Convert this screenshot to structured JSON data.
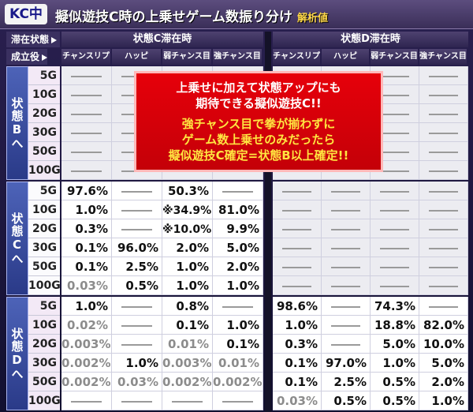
{
  "title": {
    "badge": "KC中",
    "text": "擬似遊技C時の上乗せゲーム数振り分け",
    "sub": "解析値"
  },
  "header": {
    "state_label": "滞在状態",
    "role_label": "成立役",
    "groups": [
      "状態C滞在時",
      "状態D滞在時"
    ],
    "columns": [
      "チャンスリプ",
      "ハッピ",
      "弱チャンス目",
      "強チャンス目"
    ]
  },
  "row_labels": [
    "5G",
    "10G",
    "20G",
    "30G",
    "50G",
    "100G"
  ],
  "groups": [
    {
      "label": "状態Bへ",
      "rows": [
        [
          "",
          "",
          "",
          "",
          "",
          "",
          "",
          ""
        ],
        [
          "",
          "",
          "",
          "",
          "",
          "",
          "",
          ""
        ],
        [
          "",
          "",
          "",
          "",
          "",
          "",
          "",
          ""
        ],
        [
          "",
          "",
          "",
          "",
          "",
          "",
          "",
          ""
        ],
        [
          "",
          "",
          "",
          "",
          "",
          "",
          "",
          ""
        ],
        [
          "",
          "",
          "",
          "",
          "",
          "",
          "",
          ""
        ]
      ]
    },
    {
      "label": "状態Cへ",
      "rows": [
        [
          "97.6%",
          "",
          "50.3%",
          "",
          "",
          "",
          "",
          ""
        ],
        [
          "1.0%",
          "",
          "※34.9%",
          "81.0%",
          "",
          "",
          "",
          ""
        ],
        [
          "0.3%",
          "",
          "※10.0%",
          "9.9%",
          "",
          "",
          "",
          ""
        ],
        [
          "0.1%",
          "96.0%",
          "2.0%",
          "5.0%",
          "",
          "",
          "",
          ""
        ],
        [
          "0.1%",
          "2.5%",
          "1.0%",
          "2.0%",
          "",
          "",
          "",
          ""
        ],
        [
          "0.03%",
          "0.5%",
          "1.0%",
          "1.0%",
          "",
          "",
          "",
          ""
        ]
      ]
    },
    {
      "label": "状態Dへ",
      "rows": [
        [
          "1.0%",
          "",
          "0.8%",
          "",
          "98.6%",
          "",
          "74.3%",
          ""
        ],
        [
          "0.02%",
          "",
          "0.1%",
          "1.0%",
          "1.0%",
          "",
          "18.8%",
          "82.0%"
        ],
        [
          "0.003%",
          "",
          "0.01%",
          "0.1%",
          "0.3%",
          "",
          "5.0%",
          "10.0%"
        ],
        [
          "0.002%",
          "1.0%",
          "0.003%",
          "0.01%",
          "0.1%",
          "97.0%",
          "1.0%",
          "5.0%"
        ],
        [
          "0.002%",
          "0.03%",
          "0.002%",
          "0.002%",
          "0.1%",
          "2.5%",
          "0.5%",
          "2.0%"
        ],
        [
          "",
          "",
          "",
          "",
          "0.03%",
          "0.5%",
          "0.5%",
          "1.0%"
        ]
      ]
    }
  ],
  "overlay": {
    "lines_white": [
      "上乗せに加えて状態アップにも",
      "期待できる擬似遊技C!!"
    ],
    "lines_yellow": [
      "強チャンス目で拳が揃わずに",
      "ゲーム数上乗せのみだったら",
      "擬似遊技C確定=状態B以上確定!!"
    ]
  },
  "colors": {
    "title_bg": "#4a3d6c",
    "group_bg": "#3a4ea8",
    "overlay_bg": "#e0000a",
    "overlay_yellow": "#ffe640"
  }
}
